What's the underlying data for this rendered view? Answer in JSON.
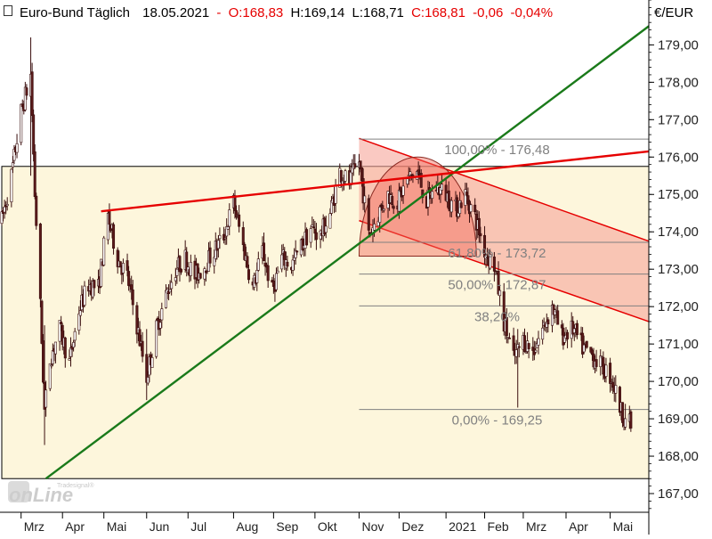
{
  "header": {
    "instrument": "Euro-Bund Täglich",
    "date": "18.05.2021",
    "open": "O:168,83",
    "high": "H:169,14",
    "low": "L:168,71",
    "close": "C:168,81",
    "change": "-0,06",
    "change_pct": "-0,04%"
  },
  "currency_label": "€/EUR",
  "watermark": {
    "small": "Tradesignal®",
    "main": "onLine"
  },
  "colors": {
    "background": "#ffffff",
    "zone_fill": "#fdf6dc",
    "trend_green": "#1a7a1a",
    "resistance_red": "#e60000",
    "channel_fill": "#f7a59a",
    "fib_line": "#808080",
    "negative_text": "#e60000",
    "candle_up": "#ffffff",
    "candle_down": "#5a1a1a"
  },
  "chart_data": {
    "type": "candlestick",
    "title": "Euro-Bund Täglich",
    "ylabel": "€/EUR",
    "ylim": [
      166.5,
      180.2
    ],
    "yticks": [
      "167,00",
      "168,00",
      "169,00",
      "170,00",
      "171,00",
      "172,00",
      "173,00",
      "174,00",
      "175,00",
      "176,00",
      "177,00",
      "178,00",
      "179,00"
    ],
    "ytick_values": [
      167,
      168,
      169,
      170,
      171,
      172,
      173,
      174,
      175,
      176,
      177,
      178,
      179
    ],
    "xtick_labels": [
      "Mrz",
      "Apr",
      "Mai",
      "Jun",
      "Jul",
      "Aug",
      "Sep",
      "Okt",
      "Nov",
      "Dez",
      "2021",
      "Feb",
      "Mrz",
      "Apr",
      "Mai"
    ],
    "xtick_dates": [
      "2020-03-02",
      "2020-04-01",
      "2020-05-01",
      "2020-06-01",
      "2020-07-01",
      "2020-08-03",
      "2020-09-01",
      "2020-10-01",
      "2020-11-02",
      "2020-12-01",
      "2021-01-04",
      "2021-02-01",
      "2021-03-01",
      "2021-04-01",
      "2021-05-03"
    ],
    "date_range": [
      "2020-02-17",
      "2021-05-31"
    ],
    "price_path": [
      [
        "2020-02-17",
        174.3
      ],
      [
        "2020-02-24",
        175.5
      ],
      [
        "2020-03-02",
        177.2
      ],
      [
        "2020-03-09",
        178.2
      ],
      [
        "2020-03-12",
        175.0
      ],
      [
        "2020-03-16",
        172.0
      ],
      [
        "2020-03-19",
        169.2
      ],
      [
        "2020-03-23",
        170.6
      ],
      [
        "2020-03-30",
        171.4
      ],
      [
        "2020-04-06",
        170.5
      ],
      [
        "2020-04-13",
        171.9
      ],
      [
        "2020-04-20",
        172.6
      ],
      [
        "2020-04-27",
        172.5
      ],
      [
        "2020-05-04",
        174.4
      ],
      [
        "2020-05-11",
        173.3
      ],
      [
        "2020-05-18",
        172.8
      ],
      [
        "2020-05-25",
        171.5
      ],
      [
        "2020-06-01",
        170.1
      ],
      [
        "2020-06-08",
        171.4
      ],
      [
        "2020-06-15",
        172.3
      ],
      [
        "2020-06-22",
        173.0
      ],
      [
        "2020-06-29",
        173.3
      ],
      [
        "2020-07-06",
        172.8
      ],
      [
        "2020-07-13",
        173.1
      ],
      [
        "2020-07-20",
        173.5
      ],
      [
        "2020-07-27",
        173.9
      ],
      [
        "2020-08-03",
        174.8
      ],
      [
        "2020-08-10",
        173.6
      ],
      [
        "2020-08-17",
        172.5
      ],
      [
        "2020-08-24",
        173.5
      ],
      [
        "2020-08-31",
        172.4
      ],
      [
        "2020-09-07",
        173.3
      ],
      [
        "2020-09-14",
        173.1
      ],
      [
        "2020-09-21",
        173.6
      ],
      [
        "2020-09-28",
        174.1
      ],
      [
        "2020-10-05",
        173.9
      ],
      [
        "2020-10-12",
        174.5
      ],
      [
        "2020-10-19",
        175.6
      ],
      [
        "2020-10-26",
        175.3
      ],
      [
        "2020-11-02",
        175.9
      ],
      [
        "2020-11-09",
        173.9
      ],
      [
        "2020-11-16",
        174.5
      ],
      [
        "2020-11-23",
        175.0
      ],
      [
        "2020-11-30",
        174.8
      ],
      [
        "2020-12-07",
        175.4
      ],
      [
        "2020-12-14",
        175.6
      ],
      [
        "2020-12-21",
        174.8
      ],
      [
        "2020-12-28",
        175.2
      ],
      [
        "2021-01-04",
        175.0
      ],
      [
        "2021-01-11",
        174.6
      ],
      [
        "2021-01-18",
        175.0
      ],
      [
        "2021-01-25",
        174.4
      ],
      [
        "2021-02-01",
        173.5
      ],
      [
        "2021-02-08",
        173.1
      ],
      [
        "2021-02-15",
        171.6
      ],
      [
        "2021-02-22",
        170.6
      ],
      [
        "2021-03-01",
        171.1
      ],
      [
        "2021-03-08",
        170.8
      ],
      [
        "2021-03-15",
        171.4
      ],
      [
        "2021-03-22",
        172.0
      ],
      [
        "2021-03-29",
        171.2
      ],
      [
        "2021-04-06",
        171.4
      ],
      [
        "2021-04-13",
        170.9
      ],
      [
        "2021-04-20",
        170.7
      ],
      [
        "2021-04-27",
        170.4
      ],
      [
        "2021-05-04",
        170.1
      ],
      [
        "2021-05-11",
        169.2
      ],
      [
        "2021-05-18",
        168.81
      ]
    ],
    "spikes": [
      {
        "date": "2020-03-09",
        "high": 179.2,
        "low": 175.5
      },
      {
        "date": "2020-03-19",
        "high": 171.5,
        "low": 168.3
      },
      {
        "date": "2020-06-01",
        "high": 171.4,
        "low": 169.5
      },
      {
        "date": "2021-02-25",
        "high": 171.4,
        "low": 169.3
      },
      {
        "date": "2021-05-14",
        "high": 169.4,
        "low": 168.7
      }
    ],
    "zone": {
      "x0": "2020-02-17",
      "x1": "2021-05-31",
      "y0": 167.4,
      "y1": 175.75
    },
    "trendlines": [
      {
        "name": "green-support",
        "color": "#1a7a1a",
        "x0": "2020-03-20",
        "y0": 167.4,
        "x1": "2021-05-31",
        "y1": 179.5
      },
      {
        "name": "red-resistance",
        "color": "#e60000",
        "x0": "2020-04-29",
        "y0": 174.55,
        "x1": "2021-05-31",
        "y1": 176.15
      }
    ],
    "channel": {
      "x0": "2020-11-02",
      "x1": "2021-05-31",
      "upper_y0": 176.5,
      "upper_y1": 173.75,
      "lower_y0": 174.3,
      "lower_y1": 171.6
    },
    "arc": {
      "x0": "2020-11-02",
      "x1": "2021-01-26",
      "base": 173.35,
      "peak": 176.0
    },
    "fibonacci": [
      {
        "level": "100,00%",
        "value": 176.48,
        "label": "100,00% - 176,48"
      },
      {
        "level": "61,80%",
        "value": 173.72,
        "label": "61,80% - 173,72"
      },
      {
        "level": "50,00%",
        "value": 172.87,
        "label": "50,00% - 172,87"
      },
      {
        "level": "38,20%",
        "value": 172.02,
        "label": "38,20%"
      },
      {
        "level": "0,00%",
        "value": 169.25,
        "label": "0,00% - 169,25"
      }
    ],
    "fib_x0": "2020-11-02"
  }
}
